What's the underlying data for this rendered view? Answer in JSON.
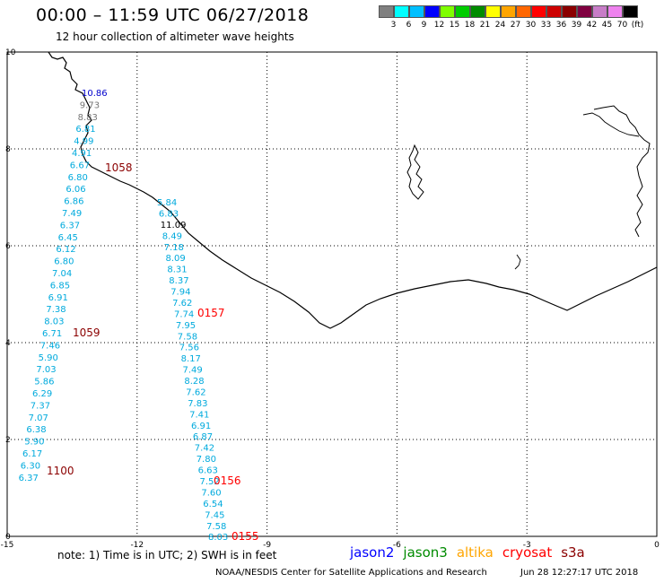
{
  "header": {
    "title": "00:00 – 11:59 UTC 06/27/2018",
    "subtitle": "12 hour collection of altimeter wave heights"
  },
  "colorbar": {
    "colors": [
      "#808080",
      "#00ffff",
      "#00bfff",
      "#0000ff",
      "#7fff00",
      "#00cd00",
      "#008b00",
      "#ffff00",
      "#ffa500",
      "#ff6600",
      "#ff0000",
      "#cd0000",
      "#8b0000",
      "#800040",
      "#c77dc7",
      "#ee82ee",
      "#000000"
    ],
    "labels": [
      "3",
      "6",
      "9",
      "12",
      "15",
      "18",
      "21",
      "24",
      "27",
      "30",
      "33",
      "36",
      "39",
      "42",
      "45",
      "70",
      "(ft)"
    ]
  },
  "axes": {
    "x_ticks": [
      "-15",
      "-12",
      "-9",
      "-6",
      "-3",
      "0"
    ],
    "y_ticks": [
      "0",
      "2",
      "4",
      "6",
      "8",
      "10"
    ]
  },
  "tracks": {
    "track_a": {
      "color": "#00aadd",
      "values": [
        "10.86",
        "9.73",
        "8.83",
        "6.81",
        "4.99",
        "4.91",
        "6.67",
        "6.80",
        "6.06",
        "6.86",
        "7.49",
        "6.37",
        "6.45",
        "6.12",
        "6.80",
        "7.04",
        "6.85",
        "6.91",
        "7.38",
        "8.03",
        "6.71",
        "7.46",
        "5.90",
        "7.03",
        "5.86",
        "6.29",
        "7.37",
        "7.07",
        "6.38",
        "5.90",
        "6.17",
        "6.30",
        "6.37"
      ],
      "value_colors": [
        "#0000cc",
        "#777777",
        "#777777",
        "#00aadd",
        "#00aadd",
        "#00aadd",
        "#00aadd"
      ]
    },
    "track_b": {
      "color": "#00aadd",
      "values": [
        "5.84",
        "6.83",
        "11.09",
        "8.49",
        "7.18",
        "8.09",
        "8.31",
        "8.37",
        "7.94",
        "7.62",
        "7.74",
        "7.95",
        "7.58",
        "7.56",
        "8.17",
        "7.49",
        "8.28",
        "7.62",
        "7.83",
        "7.41",
        "6.91",
        "6.87",
        "7.42",
        "7.80",
        "6.63",
        "7.52",
        "7.60",
        "6.54",
        "7.45",
        "7.58",
        "8.03"
      ],
      "value_colors": [
        "#00aadd",
        "#00aadd",
        "#000000"
      ]
    }
  },
  "time_labels": [
    {
      "text": "1058",
      "color": "#8b0000"
    },
    {
      "text": "1059",
      "color": "#8b0000"
    },
    {
      "text": "1100",
      "color": "#8b0000"
    },
    {
      "text": "0157",
      "color": "#ff0000"
    },
    {
      "text": "0156",
      "color": "#ff0000"
    },
    {
      "text": "0155",
      "color": "#ff0000"
    }
  ],
  "footer": {
    "note": "note:  1) Time is in UTC;  2) SWH is in feet",
    "satellites": [
      {
        "name": "jason2",
        "color": "#0000ff"
      },
      {
        "name": "jason3",
        "color": "#008b00"
      },
      {
        "name": "altika",
        "color": "#ffa500"
      },
      {
        "name": "cryosat",
        "color": "#ff0000"
      },
      {
        "name": "s3a",
        "color": "#8b0000"
      }
    ],
    "credit": "NOAA/NESDIS Center for Satellite Applications and Research",
    "timestamp": "Jun 28 12:27:17 UTC 2018"
  }
}
